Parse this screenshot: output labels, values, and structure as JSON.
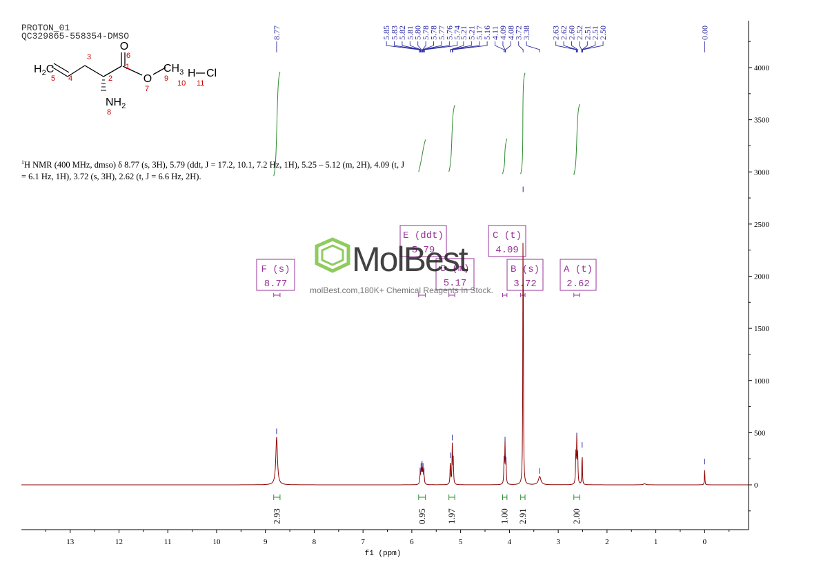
{
  "header": {
    "line1": "PROTON_01",
    "line2": "QC329865-558354-DMSO"
  },
  "molecule": {
    "h2c": "H",
    "h2c_sub": "2",
    "h2c_c": "C",
    "o_carbonyl": "O",
    "o_ester": "O",
    "ch3": "CH",
    "ch3_sub": "3",
    "h_cl": "H",
    "cl": "Cl",
    "nh2": "NH",
    "nh2_sub": "2",
    "atom_numbers": [
      "5",
      "4",
      "3",
      "2",
      "1",
      "6",
      "7",
      "9",
      "10",
      "11",
      "8"
    ],
    "color": "#cc0000"
  },
  "nmr_text": {
    "sup": "1",
    "body": "H NMR (400 MHz, dmso) δ 8.77 (s, 3H), 5.79 (ddt, J = 17.2, 10.1, 7.2 Hz, 1H), 5.25 – 5.12 (m, 2H), 4.09 (t, J = 6.1 Hz, 1H), 3.72 (s, 3H), 2.62 (t, J = 6.6 Hz, 2H)."
  },
  "watermark": {
    "brand": "MolBest",
    "tagline": "molBest.com,180K+ Chemical Reagents In Stock."
  },
  "chart_data": {
    "type": "line",
    "xlabel": "f1 (ppm)",
    "xlim": [
      14.0,
      -0.9
    ],
    "ylim": [
      -450,
      4450
    ],
    "x_ticks": [
      13,
      12,
      11,
      10,
      9,
      8,
      7,
      6,
      5,
      4,
      3,
      2,
      1,
      0
    ],
    "y_ticks": [
      0,
      500,
      1000,
      1500,
      2000,
      2500,
      3000,
      3500,
      4000
    ],
    "spectrum_color": "#8b0000",
    "integral_color": "#2e8b2e",
    "label_color": "#2a2aa0",
    "box_color": "#993399",
    "peaks": [
      {
        "ppm": 8.77,
        "height": 460,
        "width": 0.02
      },
      {
        "ppm": 5.83,
        "height": 85,
        "width": 0.008
      },
      {
        "ppm": 5.81,
        "height": 130,
        "width": 0.008
      },
      {
        "ppm": 5.79,
        "height": 150,
        "width": 0.008
      },
      {
        "ppm": 5.77,
        "height": 130,
        "width": 0.008
      },
      {
        "ppm": 5.75,
        "height": 85,
        "width": 0.008
      },
      {
        "ppm": 5.21,
        "height": 230,
        "width": 0.007
      },
      {
        "ppm": 5.17,
        "height": 400,
        "width": 0.007
      },
      {
        "ppm": 5.15,
        "height": 200,
        "width": 0.007
      },
      {
        "ppm": 4.11,
        "height": 200,
        "width": 0.007
      },
      {
        "ppm": 4.09,
        "height": 380,
        "width": 0.007
      },
      {
        "ppm": 4.07,
        "height": 190,
        "width": 0.007
      },
      {
        "ppm": 3.72,
        "height": 2780,
        "width": 0.006
      },
      {
        "ppm": 3.38,
        "height": 80,
        "width": 0.03
      },
      {
        "ppm": 2.64,
        "height": 260,
        "width": 0.007
      },
      {
        "ppm": 2.62,
        "height": 420,
        "width": 0.007
      },
      {
        "ppm": 2.6,
        "height": 250,
        "width": 0.007
      },
      {
        "ppm": 2.51,
        "height": 330,
        "width": 0.006
      },
      {
        "ppm": 1.23,
        "height": 10,
        "width": 0.03
      },
      {
        "ppm": 0.0,
        "height": 170,
        "width": 0.005
      }
    ],
    "peak_labels": [
      "8.77",
      "5.85",
      "5.83",
      "5.82",
      "5.81",
      "5.80",
      "5.78",
      "5.78",
      "5.77",
      "5.76",
      "5.74",
      "5.21",
      "5.21",
      "5.17",
      "5.16",
      "4.11",
      "4.09",
      "4.08",
      "3.72",
      "3.38",
      "2.63",
      "2.62",
      "2.60",
      "2.52",
      "2.51",
      "2.51",
      "2.50",
      "0.00"
    ],
    "label_groups": [
      {
        "ppm_from": 8.77,
        "ppm_to": 8.77,
        "labels": [
          "8.77"
        ]
      },
      {
        "ppm_from": 5.85,
        "ppm_to": 5.74,
        "labels": [
          "5.85",
          "5.83",
          "5.82",
          "5.81",
          "5.80",
          "5.78",
          "5.78",
          "5.77",
          "5.76",
          "5.74"
        ]
      },
      {
        "ppm_from": 5.21,
        "ppm_to": 3.38,
        "labels": [
          "5.21",
          "5.21",
          "5.17",
          "5.16",
          "4.11",
          "4.09",
          "4.08",
          "3.72",
          "3.38"
        ]
      },
      {
        "ppm_from": 2.63,
        "ppm_to": 2.5,
        "labels": [
          "2.63",
          "2.62",
          "2.60",
          "2.52",
          "2.51",
          "2.51",
          "2.50"
        ]
      },
      {
        "ppm_from": 0.0,
        "ppm_to": 0.0,
        "labels": [
          "0.00"
        ]
      }
    ],
    "integrals": [
      {
        "from": 8.83,
        "to": 8.7,
        "value": "2.93",
        "y_bottom": 2960,
        "y_top": 3960
      },
      {
        "from": 5.86,
        "to": 5.72,
        "value": "0.95",
        "y_bottom": 3000,
        "y_top": 3310
      },
      {
        "from": 5.24,
        "to": 5.12,
        "value": "1.97",
        "y_bottom": 3000,
        "y_top": 3640
      },
      {
        "from": 4.14,
        "to": 4.05,
        "value": "1.00",
        "y_bottom": 2980,
        "y_top": 3320
      },
      {
        "from": 3.77,
        "to": 3.68,
        "value": "2.91",
        "y_bottom": 2980,
        "y_top": 3950
      },
      {
        "from": 2.68,
        "to": 2.56,
        "value": "2.00",
        "y_bottom": 2970,
        "y_top": 3650
      }
    ],
    "multiplets": [
      {
        "name": "F",
        "kind": "(s)",
        "shift": "8.77",
        "ppm": 8.77,
        "range": [
          8.83,
          8.7
        ]
      },
      {
        "name": "E",
        "kind": "(ddt)",
        "shift": "5.79",
        "ppm": 5.79,
        "range": [
          5.86,
          5.72
        ]
      },
      {
        "name": "D",
        "kind": "(m)",
        "shift": "5.17",
        "ppm": 5.17,
        "range": [
          5.24,
          5.12
        ]
      },
      {
        "name": "C",
        "kind": "(t)",
        "shift": "4.09",
        "ppm": 4.09,
        "range": [
          4.14,
          4.05
        ]
      },
      {
        "name": "B",
        "kind": "(s)",
        "shift": "3.72",
        "ppm": 3.72,
        "range": [
          3.77,
          3.68
        ]
      },
      {
        "name": "A",
        "kind": "(t)",
        "shift": "2.62",
        "ppm": 2.62,
        "range": [
          2.68,
          2.56
        ]
      }
    ]
  }
}
